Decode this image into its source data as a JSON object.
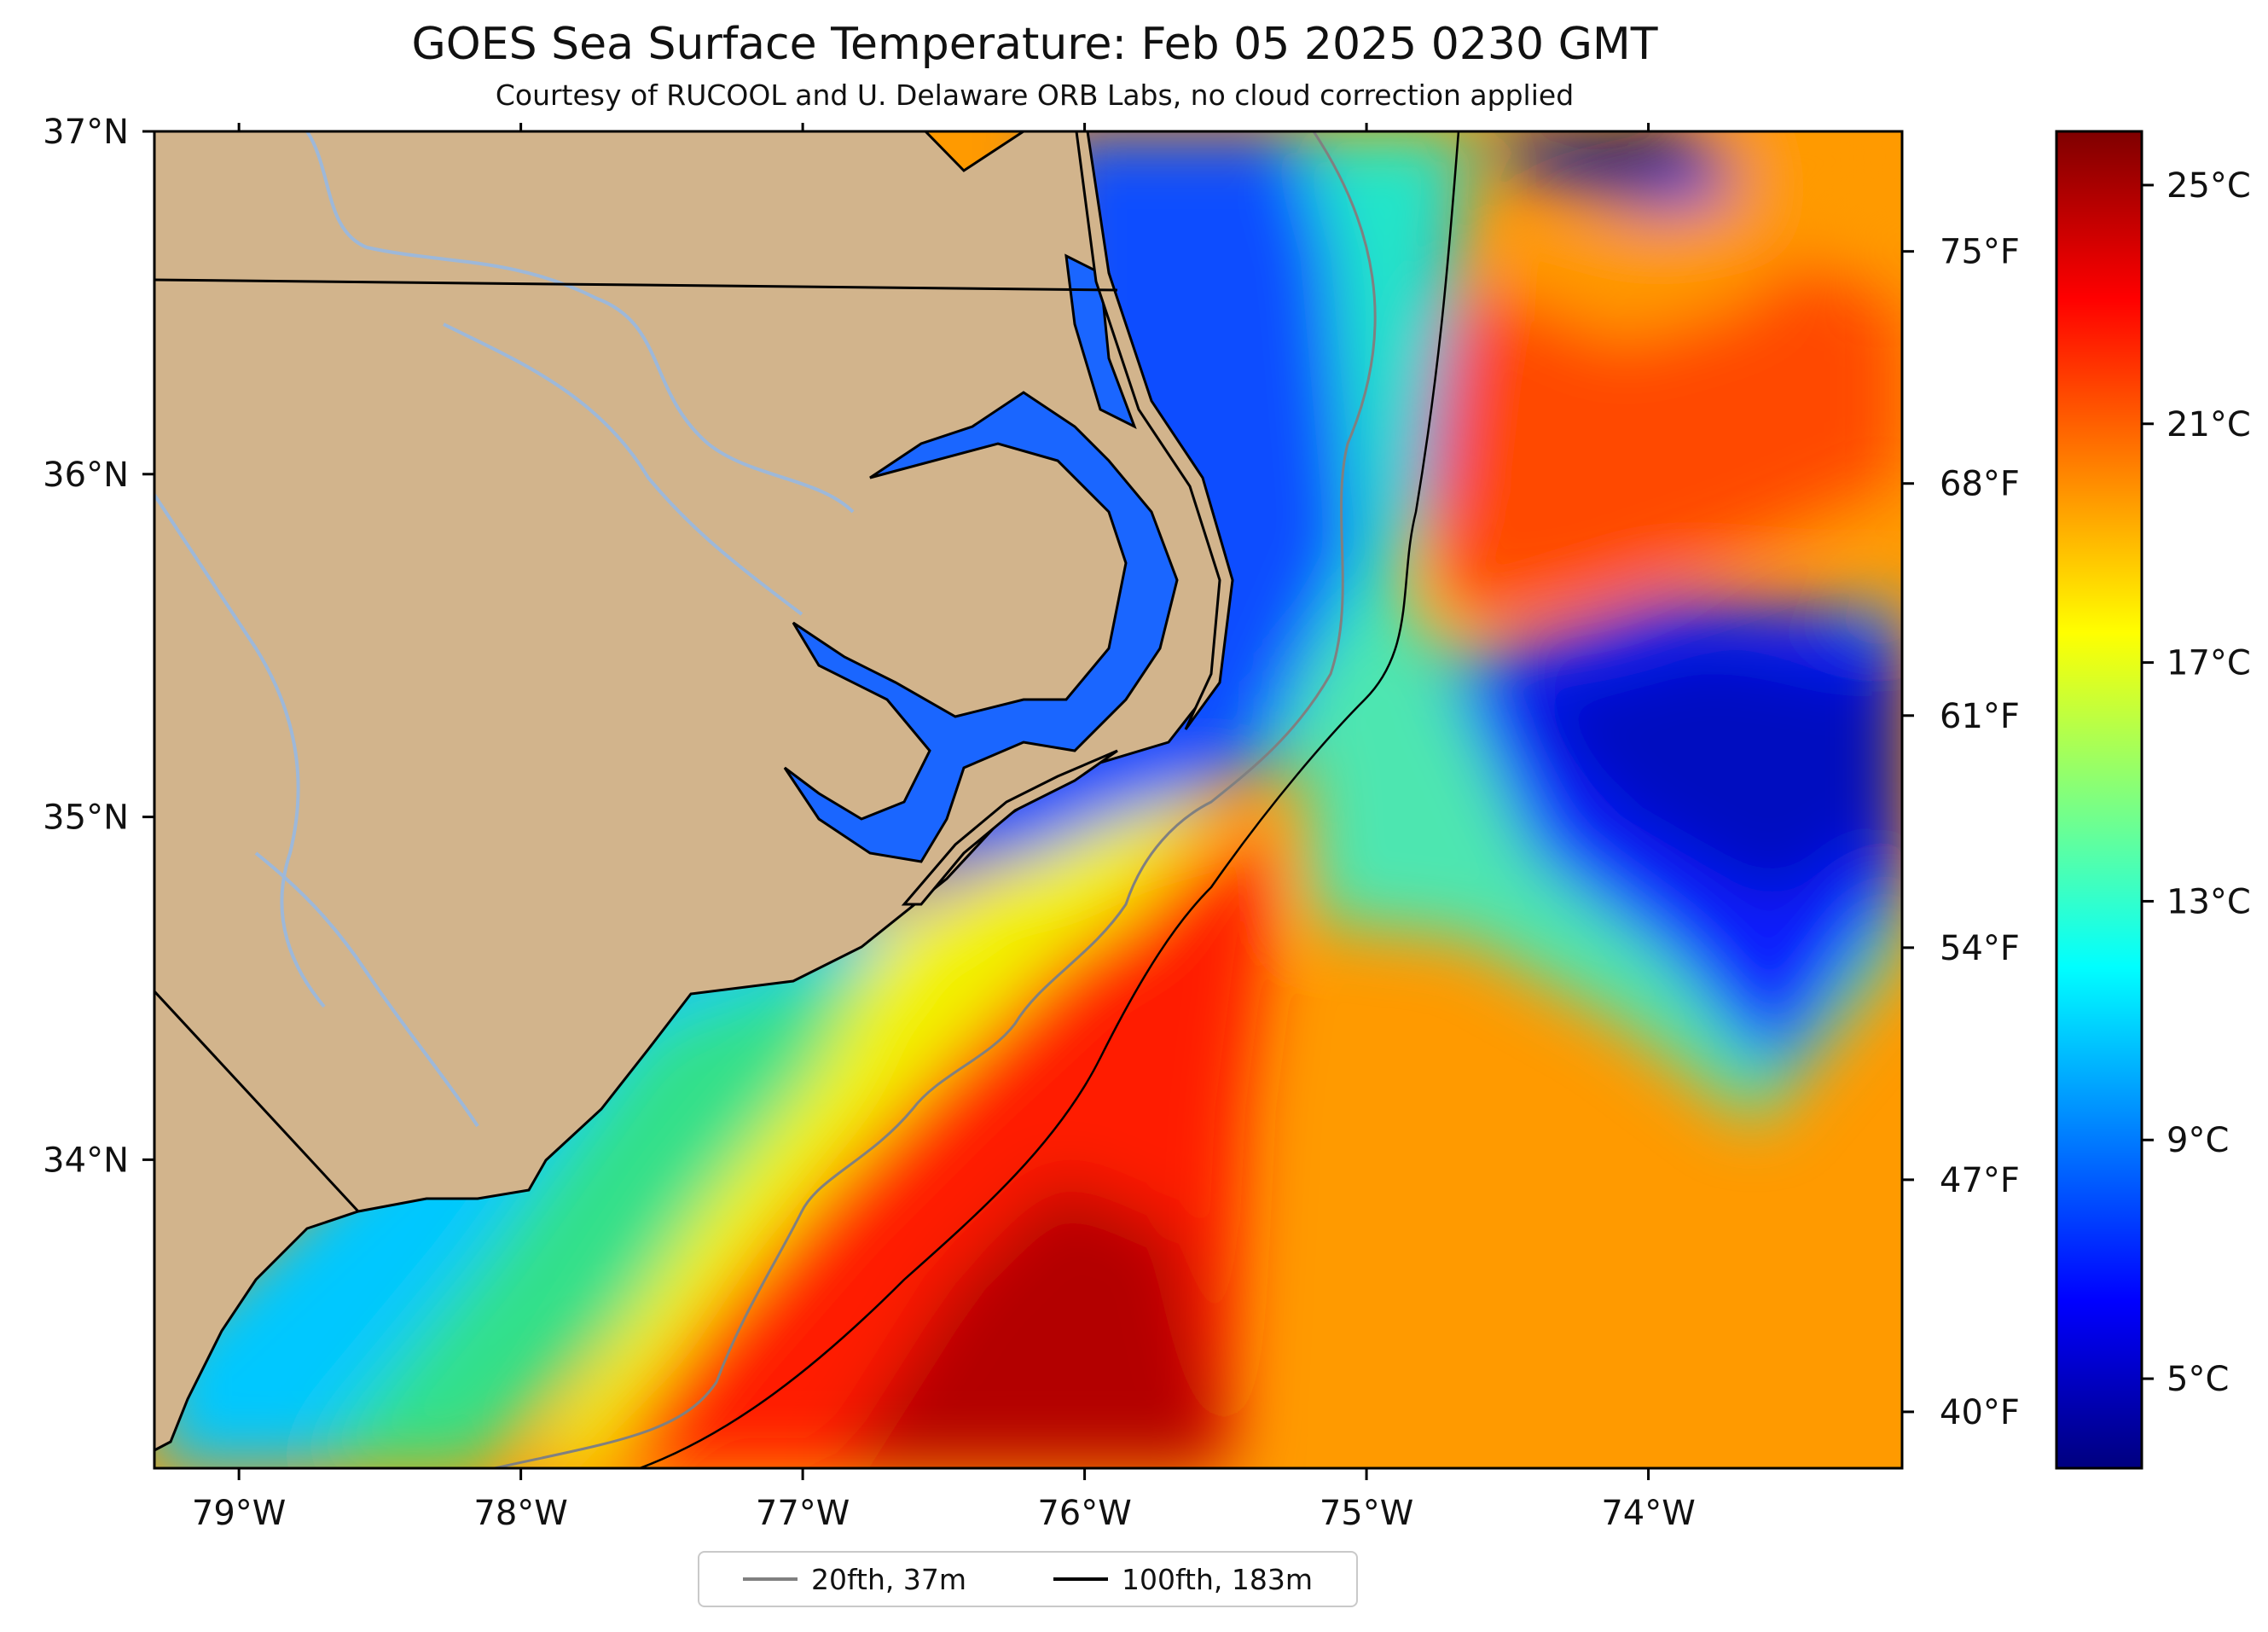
{
  "title": "GOES Sea Surface Temperature: Feb 05 2025 0230 GMT",
  "subtitle": "Courtesy of RUCOOL and U. Delaware ORB Labs, no cloud correction applied",
  "map": {
    "lat_range": [
      33.1,
      37.0
    ],
    "lon_range": [
      -79.3,
      -73.1
    ],
    "lat_ticks": [
      "37°N",
      "36°N",
      "35°N",
      "34°N"
    ],
    "lon_ticks": [
      "79°W",
      "78°W",
      "77°W",
      "76°W",
      "75°W",
      "74°W"
    ],
    "fahrenheit_ticks": [
      "75°F",
      "68°F",
      "61°F",
      "54°F",
      "47°F",
      "40°F"
    ],
    "land_color": "#d2b48c",
    "river_color": "#9db8d9",
    "coast_color": "#000000"
  },
  "colorbar": {
    "labels": [
      "25°C",
      "21°C",
      "17°C",
      "13°C",
      "9°C",
      "5°C"
    ],
    "colormap": "jet",
    "range_c": [
      3.5,
      25.9
    ]
  },
  "legend": {
    "items": [
      {
        "label": "20fth, 37m",
        "color": "#808080"
      },
      {
        "label": "100fth, 183m",
        "color": "#000000"
      }
    ]
  }
}
